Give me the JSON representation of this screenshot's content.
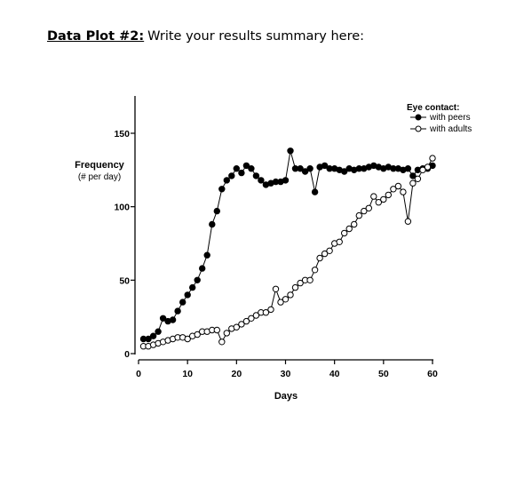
{
  "heading": {
    "label": "Data Plot #2:",
    "text": "Write your results summary here:"
  },
  "chart_data": {
    "type": "line",
    "title": "",
    "xlabel": "Days",
    "ylabel": "Frequency",
    "ylabel_sub": "(# per day)",
    "xlim": [
      0,
      60
    ],
    "ylim": [
      0,
      150
    ],
    "xticks": [
      0,
      10,
      20,
      30,
      40,
      50,
      60
    ],
    "yticks": [
      0,
      50,
      100,
      150
    ],
    "grid": false,
    "legend": {
      "title": "Eye contact:",
      "position": "top-right"
    },
    "series": [
      {
        "name": "with peers",
        "marker": "filled-circle",
        "x": [
          1,
          2,
          3,
          4,
          5,
          6,
          7,
          8,
          9,
          10,
          11,
          12,
          13,
          14,
          15,
          16,
          17,
          18,
          19,
          20,
          21,
          22,
          23,
          24,
          25,
          26,
          27,
          28,
          29,
          30,
          31,
          32,
          33,
          34,
          35,
          36,
          37,
          38,
          39,
          40,
          41,
          42,
          43,
          44,
          45,
          46,
          47,
          48,
          49,
          50,
          51,
          52,
          53,
          54,
          55,
          56,
          57,
          58,
          59,
          60
        ],
        "values": [
          10,
          10,
          12,
          15,
          24,
          22,
          23,
          29,
          35,
          40,
          45,
          50,
          58,
          67,
          88,
          97,
          112,
          118,
          121,
          126,
          123,
          128,
          126,
          121,
          118,
          115,
          116,
          117,
          117,
          118,
          138,
          126,
          126,
          124,
          126,
          110,
          127,
          128,
          126,
          126,
          125,
          124,
          126,
          125,
          126,
          126,
          127,
          128,
          127,
          126,
          127,
          126,
          126,
          125,
          126,
          121,
          125,
          126,
          126,
          128
        ]
      },
      {
        "name": "with adults",
        "marker": "open-circle",
        "x": [
          1,
          2,
          3,
          4,
          5,
          6,
          7,
          8,
          9,
          10,
          11,
          12,
          13,
          14,
          15,
          16,
          17,
          18,
          19,
          20,
          21,
          22,
          23,
          24,
          25,
          26,
          27,
          28,
          29,
          30,
          31,
          32,
          33,
          34,
          35,
          36,
          37,
          38,
          39,
          40,
          41,
          42,
          43,
          44,
          45,
          46,
          47,
          48,
          49,
          50,
          51,
          52,
          53,
          54,
          55,
          56,
          57,
          58,
          59,
          60
        ],
        "values": [
          5,
          5,
          6,
          7,
          8,
          9,
          10,
          11,
          11,
          10,
          12,
          13,
          15,
          15,
          16,
          16,
          8,
          14,
          17,
          18,
          20,
          22,
          24,
          26,
          28,
          28,
          30,
          44,
          35,
          37,
          40,
          45,
          48,
          50,
          50,
          57,
          65,
          68,
          70,
          75,
          76,
          82,
          85,
          88,
          94,
          97,
          99,
          107,
          103,
          105,
          108,
          112,
          114,
          110,
          90,
          116,
          119,
          125,
          127,
          133
        ]
      }
    ]
  }
}
